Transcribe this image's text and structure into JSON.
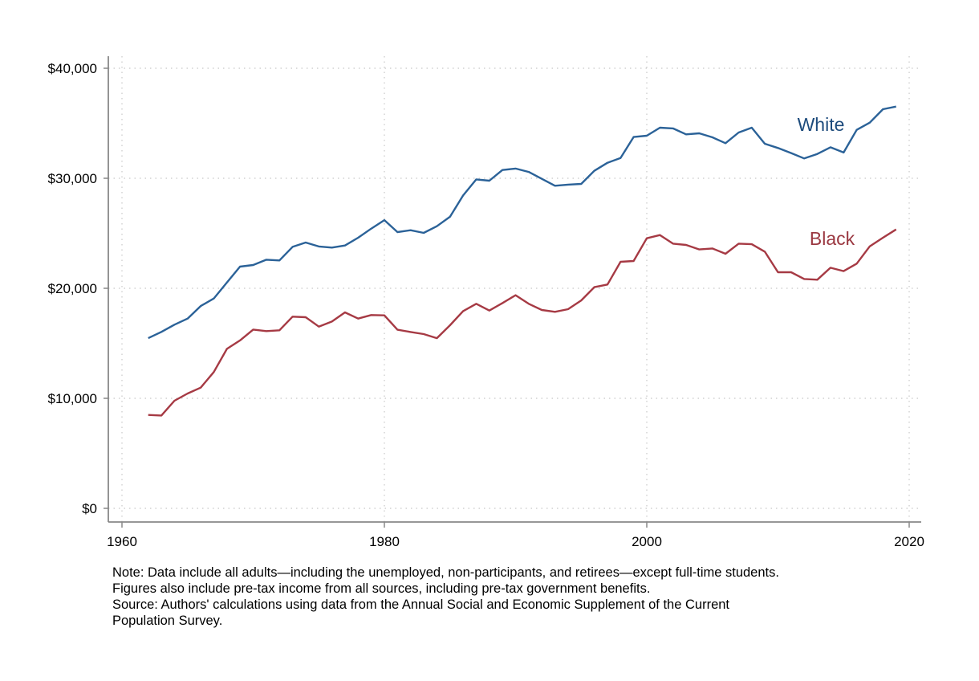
{
  "chart_data": {
    "type": "line",
    "title": "",
    "xlabel": "",
    "ylabel": "",
    "xlim": [
      1960,
      2020
    ],
    "ylim": [
      0,
      40000
    ],
    "x_ticks": [
      1960,
      1980,
      2000,
      2020
    ],
    "x_tick_labels": [
      "1960",
      "1980",
      "2000",
      "2020"
    ],
    "y_ticks": [
      0,
      10000,
      20000,
      30000,
      40000
    ],
    "y_tick_labels": [
      "$0",
      "$10,000",
      "$20,000",
      "$30,000",
      "$40,000"
    ],
    "grid": true,
    "legend": "inline labels at right end of lines",
    "x": [
      1962,
      1963,
      1964,
      1965,
      1966,
      1967,
      1968,
      1969,
      1970,
      1971,
      1972,
      1973,
      1974,
      1975,
      1976,
      1977,
      1978,
      1979,
      1980,
      1981,
      1982,
      1983,
      1984,
      1985,
      1986,
      1987,
      1988,
      1989,
      1990,
      1991,
      1992,
      1993,
      1994,
      1995,
      1996,
      1997,
      1998,
      1999,
      2000,
      2001,
      2002,
      2003,
      2004,
      2005,
      2006,
      2007,
      2008,
      2009,
      2010,
      2011,
      2012,
      2013,
      2014,
      2015,
      2016,
      2017,
      2018,
      2019
    ],
    "series": [
      {
        "name": "White",
        "color": "#2b6298",
        "label_color": "#1d4b7c",
        "values": [
          15470,
          16040,
          16690,
          17250,
          18390,
          19070,
          20530,
          21970,
          22120,
          22600,
          22530,
          23770,
          24160,
          23800,
          23700,
          23890,
          24600,
          25420,
          26200,
          25110,
          25280,
          25040,
          25640,
          26500,
          28440,
          29900,
          29780,
          30750,
          30880,
          30580,
          29950,
          29320,
          29420,
          29490,
          30680,
          31410,
          31850,
          33750,
          33870,
          34600,
          34530,
          33990,
          34090,
          33720,
          33190,
          34160,
          34600,
          33140,
          32750,
          32290,
          31800,
          32210,
          32820,
          32340,
          34400,
          35060,
          36280,
          36520
        ]
      },
      {
        "name": "Black",
        "color": "#a63a44",
        "label_color": "#9a3740",
        "values": [
          8490,
          8440,
          9780,
          10440,
          10970,
          12390,
          14500,
          15260,
          16250,
          16110,
          16180,
          17420,
          17370,
          16520,
          16980,
          17810,
          17250,
          17570,
          17540,
          16230,
          16030,
          15840,
          15470,
          16640,
          17930,
          18590,
          17980,
          18660,
          19370,
          18590,
          18030,
          17860,
          18100,
          18900,
          20100,
          20340,
          22410,
          22480,
          24550,
          24840,
          24060,
          23940,
          23530,
          23620,
          23140,
          24060,
          24010,
          23330,
          21460,
          21460,
          20850,
          20780,
          21870,
          21560,
          22240,
          23820,
          24600,
          25350
        ]
      }
    ]
  },
  "notes": [
    "Note: Data include all adults—including the unemployed, non-participants, and retirees—except full-time students.",
    "Figures also include pre-tax income from all sources, including pre-tax government benefits.",
    "Source: Authors' calculations using data from the Annual Social and Economic Supplement of the Current",
    "Population Survey."
  ]
}
